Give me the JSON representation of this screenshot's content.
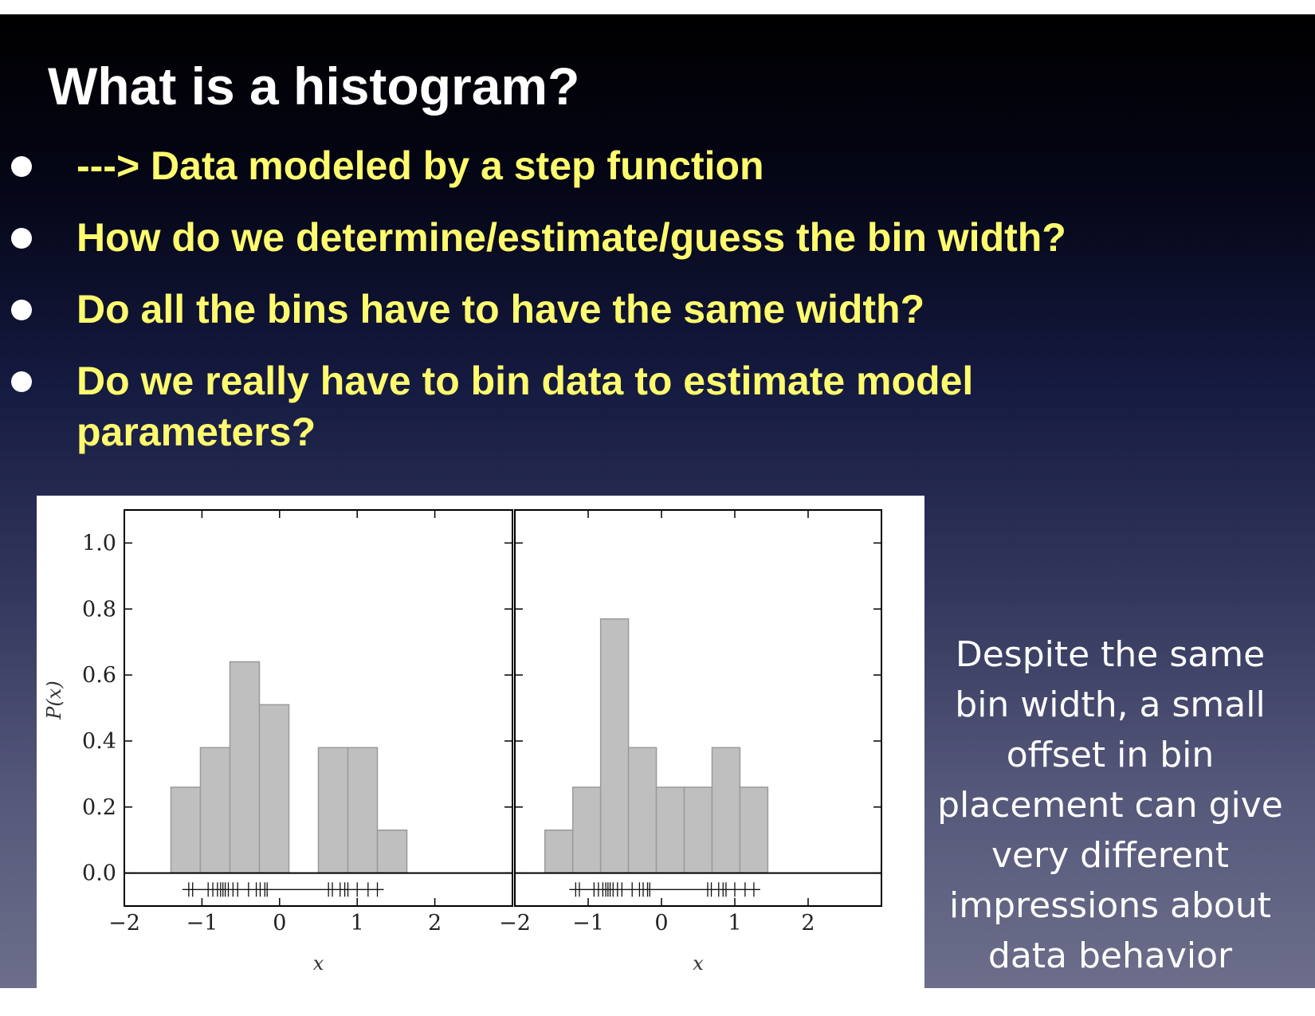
{
  "slide": {
    "title": "What is a histogram?",
    "bullets": [
      "---> Data modeled by a step function",
      "How do we determine/estimate/guess the bin width?",
      "Do all the bins have to have the same width?",
      "Do we really have to bin data to estimate model parameters?"
    ],
    "caption": "Despite the same bin width, a small offset in bin placement can give very different impressions about data behavior"
  },
  "colors": {
    "title": "#ffffff",
    "bullet_text": "#fffb6e",
    "bar_fill": "#bfbfbf",
    "bar_edge": "#9a9a9a"
  },
  "chart_data": [
    {
      "type": "bar",
      "title": "",
      "xlabel": "x",
      "ylabel": "P(x)",
      "xlim": [
        -2,
        3
      ],
      "ylim": [
        -0.1,
        1.1
      ],
      "xticks": [
        "−2",
        "−1",
        "0",
        "1",
        "2"
      ],
      "yticks": [
        "0.0",
        "0.2",
        "0.4",
        "0.6",
        "0.8",
        "1.0"
      ],
      "bin_width": 0.38,
      "bins": [
        {
          "x0": -1.4,
          "x1": -1.02,
          "value": 0.26
        },
        {
          "x0": -1.02,
          "x1": -0.64,
          "value": 0.38
        },
        {
          "x0": -0.64,
          "x1": -0.26,
          "value": 0.64
        },
        {
          "x0": -0.26,
          "x1": 0.12,
          "value": 0.51
        },
        {
          "x0": 0.12,
          "x1": 0.5,
          "value": 0.0
        },
        {
          "x0": 0.5,
          "x1": 0.88,
          "value": 0.38
        },
        {
          "x0": 0.88,
          "x1": 1.26,
          "value": 0.38
        },
        {
          "x0": 1.26,
          "x1": 1.64,
          "value": 0.13
        }
      ],
      "data_points": [
        -1.17,
        -1.12,
        -0.92,
        -0.86,
        -0.8,
        -0.76,
        -0.73,
        -0.7,
        -0.66,
        -0.6,
        -0.54,
        -0.4,
        -0.3,
        -0.25,
        -0.19,
        -0.16,
        0.63,
        0.68,
        0.78,
        0.84,
        0.88,
        1.0,
        1.14,
        1.26
      ]
    },
    {
      "type": "bar",
      "title": "",
      "xlabel": "x",
      "ylabel": "",
      "xlim": [
        -2,
        3
      ],
      "ylim": [
        -0.1,
        1.1
      ],
      "xticks": [
        "−2",
        "−1",
        "0",
        "1",
        "2"
      ],
      "yticks": [],
      "bin_width": 0.38,
      "bins": [
        {
          "x0": -1.59,
          "x1": -1.21,
          "value": 0.13
        },
        {
          "x0": -1.21,
          "x1": -0.83,
          "value": 0.26
        },
        {
          "x0": -0.83,
          "x1": -0.45,
          "value": 0.77
        },
        {
          "x0": -0.45,
          "x1": -0.07,
          "value": 0.38
        },
        {
          "x0": -0.07,
          "x1": 0.31,
          "value": 0.26
        },
        {
          "x0": 0.31,
          "x1": 0.69,
          "value": 0.26
        },
        {
          "x0": 0.69,
          "x1": 1.07,
          "value": 0.38
        },
        {
          "x0": 1.07,
          "x1": 1.45,
          "value": 0.26
        }
      ],
      "data_points": [
        -1.17,
        -1.12,
        -0.92,
        -0.86,
        -0.8,
        -0.76,
        -0.73,
        -0.7,
        -0.66,
        -0.6,
        -0.54,
        -0.4,
        -0.3,
        -0.25,
        -0.19,
        -0.16,
        0.63,
        0.68,
        0.78,
        0.84,
        0.88,
        1.0,
        1.14,
        1.26
      ]
    }
  ]
}
